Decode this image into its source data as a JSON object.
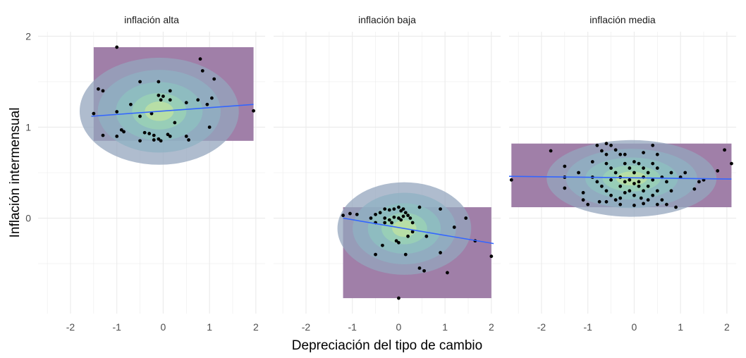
{
  "chart_data": {
    "type": "scatter",
    "xlabel": "Depreciación del tipo de cambio",
    "ylabel": "Inflación intermensual",
    "xlim": [
      -2.7,
      2.2
    ],
    "ylim": [
      -1.05,
      2.05
    ],
    "x_ticks": [
      -2,
      -1,
      0,
      1,
      2
    ],
    "y_ticks": [
      0,
      1,
      2
    ],
    "grid": true,
    "density_fill": true,
    "colors": {
      "background_density": "#a07fa8",
      "points": "#000000",
      "trend_line": "#3366ff",
      "grid": "#ebebeb"
    },
    "panels": [
      {
        "title": "inflación alta",
        "trend": {
          "x": [
            -1.55,
            1.95
          ],
          "y": [
            1.12,
            1.25
          ]
        },
        "points": [
          [
            -1.0,
            1.88
          ],
          [
            0.8,
            1.75
          ],
          [
            0.85,
            1.62
          ],
          [
            1.1,
            1.53
          ],
          [
            -0.5,
            1.5
          ],
          [
            -0.1,
            1.5
          ],
          [
            -1.4,
            1.42
          ],
          [
            -1.3,
            1.4
          ],
          [
            0.15,
            1.4
          ],
          [
            -0.1,
            1.35
          ],
          [
            0.0,
            1.34
          ],
          [
            1.05,
            1.32
          ],
          [
            0.75,
            1.3
          ],
          [
            -0.05,
            1.3
          ],
          [
            0.15,
            1.3
          ],
          [
            -0.7,
            1.25
          ],
          [
            0.95,
            1.25
          ],
          [
            0.5,
            1.27
          ],
          [
            -1.5,
            1.15
          ],
          [
            -1.0,
            1.17
          ],
          [
            1.95,
            1.18
          ],
          [
            -0.25,
            1.15
          ],
          [
            -0.5,
            1.12
          ],
          [
            0.25,
            1.05
          ],
          [
            1.0,
            1.0
          ],
          [
            -0.9,
            0.97
          ],
          [
            -0.85,
            0.95
          ],
          [
            -0.4,
            0.94
          ],
          [
            -0.3,
            0.93
          ],
          [
            -0.2,
            0.91
          ],
          [
            0.1,
            0.92
          ],
          [
            0.15,
            0.9
          ],
          [
            -1.3,
            0.91
          ],
          [
            -1.0,
            0.9
          ],
          [
            -0.2,
            0.86
          ],
          [
            -0.1,
            0.87
          ],
          [
            -0.05,
            0.85
          ],
          [
            0.5,
            0.9
          ],
          [
            0.55,
            0.86
          ],
          [
            -0.5,
            0.85
          ]
        ]
      },
      {
        "title": "inflación baja",
        "trend": {
          "x": [
            -1.2,
            2.05
          ],
          "y": [
            0.0,
            -0.28
          ]
        },
        "points": [
          [
            -1.2,
            0.03
          ],
          [
            -1.05,
            0.05
          ],
          [
            -0.9,
            0.04
          ],
          [
            -0.6,
            0.0
          ],
          [
            -0.5,
            0.04
          ],
          [
            -0.4,
            0.06
          ],
          [
            -0.3,
            0.1
          ],
          [
            -0.2,
            0.09
          ],
          [
            -0.1,
            0.1
          ],
          [
            0.0,
            0.12
          ],
          [
            0.05,
            0.08
          ],
          [
            0.1,
            0.1
          ],
          [
            0.15,
            0.06
          ],
          [
            0.2,
            0.03
          ],
          [
            -0.3,
            0.0
          ],
          [
            -0.2,
            -0.02
          ],
          [
            -0.1,
            0.01
          ],
          [
            0.0,
            0.0
          ],
          [
            0.05,
            -0.02
          ],
          [
            0.1,
            0.02
          ],
          [
            -0.5,
            -0.05
          ],
          [
            -0.15,
            -0.05
          ],
          [
            0.3,
            -0.05
          ],
          [
            0.45,
            0.12
          ],
          [
            0.9,
            0.1
          ],
          [
            0.3,
            -0.15
          ],
          [
            1.45,
            0.0
          ],
          [
            1.2,
            -0.1
          ],
          [
            0.6,
            -0.2
          ],
          [
            0.2,
            -0.2
          ],
          [
            -0.05,
            -0.25
          ],
          [
            0.0,
            -0.27
          ],
          [
            -0.35,
            -0.3
          ],
          [
            -0.5,
            -0.4
          ],
          [
            0.15,
            -0.4
          ],
          [
            0.9,
            -0.38
          ],
          [
            1.65,
            -0.25
          ],
          [
            2.0,
            -0.42
          ],
          [
            0.45,
            -0.55
          ],
          [
            0.55,
            -0.58
          ],
          [
            1.05,
            -0.6
          ],
          [
            0.0,
            -0.88
          ],
          [
            -0.3,
            -0.05
          ],
          [
            0.25,
            0.0
          ]
        ]
      },
      {
        "title": "inflación media",
        "trend": {
          "x": [
            -2.7,
            2.1
          ],
          "y": [
            0.46,
            0.43
          ]
        },
        "points": [
          [
            -2.65,
            0.42
          ],
          [
            -1.8,
            0.74
          ],
          [
            -1.5,
            0.57
          ],
          [
            -1.2,
            0.5
          ],
          [
            -1.5,
            0.45
          ],
          [
            -1.5,
            0.33
          ],
          [
            -1.1,
            0.28
          ],
          [
            -1.1,
            0.2
          ],
          [
            -1.0,
            0.15
          ],
          [
            -0.8,
            0.8
          ],
          [
            -0.7,
            0.74
          ],
          [
            -0.6,
            0.82
          ],
          [
            -0.6,
            0.7
          ],
          [
            -0.5,
            0.8
          ],
          [
            -0.4,
            0.75
          ],
          [
            -0.3,
            0.7
          ],
          [
            -0.6,
            0.6
          ],
          [
            -0.5,
            0.55
          ],
          [
            -0.4,
            0.5
          ],
          [
            -0.3,
            0.45
          ],
          [
            -0.2,
            0.6
          ],
          [
            -0.1,
            0.55
          ],
          [
            0.0,
            0.5
          ],
          [
            0.1,
            0.6
          ],
          [
            0.2,
            0.55
          ],
          [
            0.3,
            0.5
          ],
          [
            0.4,
            0.6
          ],
          [
            0.5,
            0.55
          ],
          [
            0.6,
            0.45
          ],
          [
            0.7,
            0.4
          ],
          [
            0.8,
            0.5
          ],
          [
            1.1,
            0.5
          ],
          [
            1.3,
            0.32
          ],
          [
            1.4,
            0.4
          ],
          [
            -0.9,
            0.45
          ],
          [
            -0.8,
            0.4
          ],
          [
            -0.7,
            0.35
          ],
          [
            -0.6,
            0.3
          ],
          [
            -0.5,
            0.25
          ],
          [
            -0.4,
            0.2
          ],
          [
            -0.3,
            0.22
          ],
          [
            -0.2,
            0.28
          ],
          [
            -0.1,
            0.3
          ],
          [
            0.0,
            0.25
          ],
          [
            0.1,
            0.35
          ],
          [
            0.2,
            0.3
          ],
          [
            0.3,
            0.2
          ],
          [
            0.4,
            0.25
          ],
          [
            0.5,
            0.3
          ],
          [
            0.6,
            0.2
          ],
          [
            0.7,
            0.15
          ],
          [
            0.9,
            0.12
          ],
          [
            -0.75,
            0.18
          ],
          [
            -0.6,
            0.18
          ],
          [
            -0.3,
            0.15
          ],
          [
            0.0,
            0.14
          ],
          [
            0.2,
            0.16
          ],
          [
            0.5,
            0.15
          ],
          [
            -0.2,
            0.4
          ],
          [
            -0.1,
            0.42
          ],
          [
            0.0,
            0.38
          ],
          [
            0.1,
            0.4
          ],
          [
            0.2,
            0.45
          ],
          [
            -0.3,
            0.35
          ],
          [
            0.3,
            0.35
          ],
          [
            0.4,
            0.42
          ],
          [
            0.8,
            0.3
          ],
          [
            1.0,
            0.45
          ],
          [
            1.5,
            0.42
          ],
          [
            1.95,
            0.75
          ],
          [
            1.8,
            0.52
          ],
          [
            2.1,
            0.6
          ],
          [
            -0.9,
            0.62
          ],
          [
            -0.2,
            0.7
          ],
          [
            0.2,
            0.72
          ],
          [
            0.5,
            0.7
          ],
          [
            -0.5,
            0.42
          ],
          [
            0.0,
            0.62
          ],
          [
            0.4,
            0.8
          ],
          [
            0.15,
            0.22
          ]
        ]
      }
    ]
  }
}
